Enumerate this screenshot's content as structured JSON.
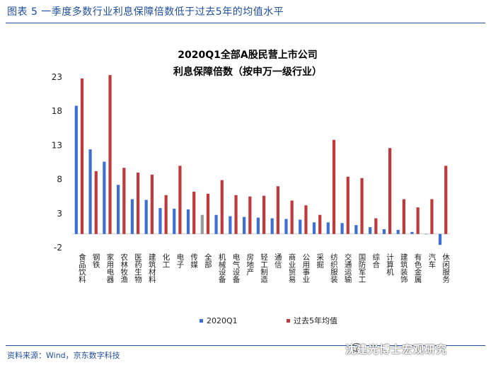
{
  "figure_caption": "图表 5  一季度多数行业利息保障倍数低于过去5年的均值水平",
  "source": "资料来源：Wind，京东数字科技",
  "watermark": "沈建光博士宏观研究",
  "colors": {
    "series_2020q1": "#3d6fd6",
    "series_past5": "#c0393b",
    "highlight": "#9a9a9a",
    "caption": "#1f4e9c"
  },
  "chart_data": {
    "type": "bar",
    "title_line1": "2020Q1全部A股民营上市公司",
    "title_line2": "利息保障倍数（按申万一级行业）",
    "ylim": [
      -2,
      23
    ],
    "yticks": [
      23,
      18,
      13,
      8,
      3,
      -2
    ],
    "categories": [
      "食品饮料",
      "钢铁",
      "家用电器",
      "农林牧渔",
      "医药生物",
      "建筑材料",
      "化工",
      "电子",
      "传媒",
      "全部",
      "机械设备",
      "电气设备",
      "房地产",
      "轻工制造",
      "通信",
      "商业贸易",
      "公用事业",
      "采掘",
      "纺织服装",
      "交通运输",
      "国防军工",
      "综合",
      "计算机",
      "建筑装饰",
      "有色金属",
      "汽车",
      "休闲服务"
    ],
    "series": [
      {
        "name": "2020Q1",
        "values": [
          18.8,
          12.4,
          10.6,
          7.2,
          5.1,
          5.0,
          3.8,
          3.7,
          3.6,
          2.8,
          2.8,
          2.6,
          2.5,
          2.4,
          2.3,
          2.2,
          2.1,
          1.7,
          1.7,
          1.6,
          1.3,
          1.0,
          0.7,
          0.6,
          0.3,
          0.0,
          -1.6
        ]
      },
      {
        "name": "过去5年均值",
        "values": [
          22.8,
          9.2,
          23.3,
          9.7,
          9.0,
          8.7,
          5.7,
          10.0,
          6.2,
          5.9,
          7.9,
          5.7,
          5.5,
          5.6,
          7.0,
          4.9,
          4.2,
          2.8,
          13.8,
          8.4,
          8.2,
          2.3,
          12.6,
          5.1,
          3.9,
          5.1,
          10.0
        ]
      }
    ],
    "highlight_category": "全部",
    "legend": [
      "2020Q1",
      "过去5年均值"
    ],
    "legend_position": "bottom"
  }
}
